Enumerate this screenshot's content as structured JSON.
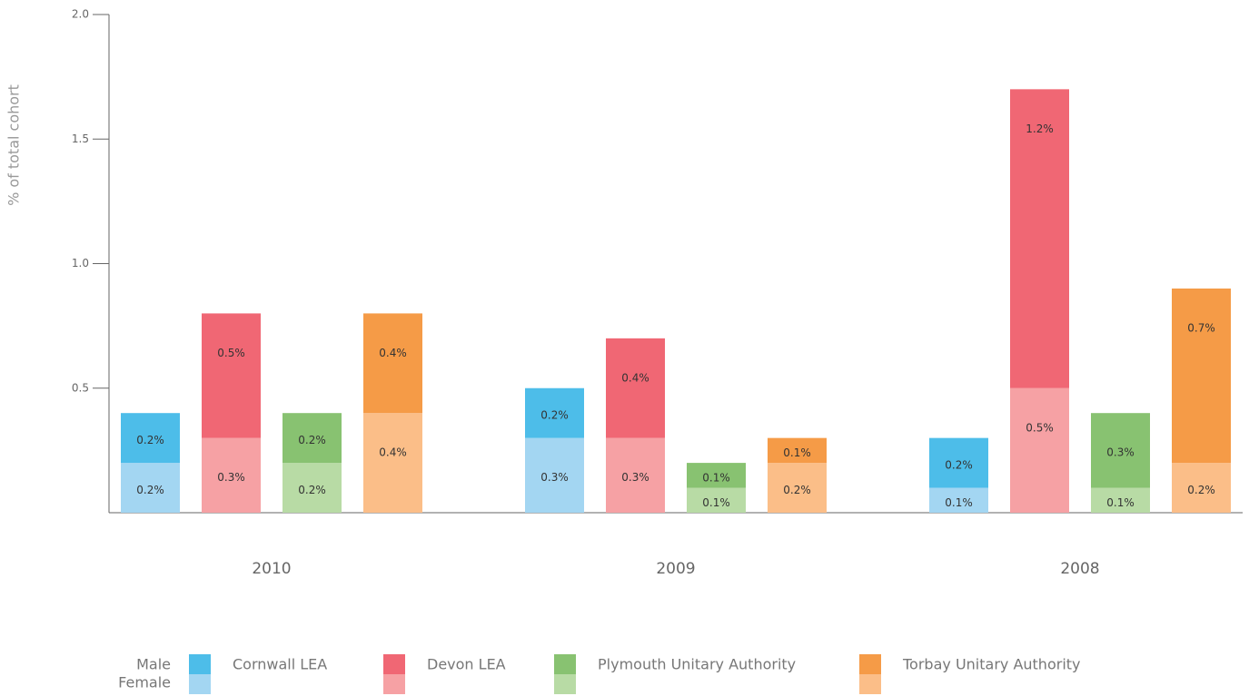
{
  "chart_data": {
    "type": "bar",
    "y_label": "% of total cohort",
    "categories": [
      "2010",
      "2009",
      "2008"
    ],
    "stack_names": [
      "Male",
      "Female"
    ],
    "ylim": [
      0,
      2.0
    ],
    "yticks": [
      0.5,
      {
        "value": 1,
        "label": "1.0"
      },
      1.5,
      {
        "value": 2,
        "label": "2.0"
      }
    ],
    "series": [
      {
        "name": "Cornwall LEA",
        "female": {
          "color": "#a3d6f2",
          "values": [
            0.2,
            0.3,
            0.1
          ],
          "value_labels": [
            "0.2%",
            "0.3%",
            "0.1%"
          ]
        },
        "male": {
          "color": "#4dbde9",
          "values": [
            0.2,
            0.2,
            0.2
          ],
          "value_labels": [
            "0.2%",
            "0.2%",
            "0.2%"
          ]
        }
      },
      {
        "name": "Devon LEA",
        "female": {
          "color": "#f6a1a4",
          "values": [
            0.3,
            0.3,
            0.5
          ],
          "value_labels": [
            "0.3%",
            "0.3%",
            "0.5%"
          ]
        },
        "male": {
          "color": "#f06774",
          "values": [
            0.5,
            0.4,
            1.2
          ],
          "value_labels": [
            "0.5%",
            "0.4%",
            "1.2%"
          ]
        }
      },
      {
        "name": "Plymouth Unitary Authority",
        "female": {
          "color": "#b8dba5",
          "values": [
            0.2,
            0.1,
            0.1
          ],
          "value_labels": [
            "0.2%",
            "0.1%",
            "0.1%"
          ]
        },
        "male": {
          "color": "#88c271",
          "values": [
            0.2,
            0.1,
            0.3
          ],
          "value_labels": [
            "0.2%",
            "0.1%",
            "0.3%"
          ]
        }
      },
      {
        "name": "Torbay Unitary Authority",
        "female": {
          "color": "#fbbe88",
          "values": [
            0.4,
            0.2,
            0.2
          ],
          "value_labels": [
            "0.4%",
            "0.2%",
            "0.2%"
          ]
        },
        "male": {
          "color": "#f59b47",
          "values": [
            0.4,
            0.1,
            0.7
          ],
          "value_labels": [
            "0.4%",
            "0.1%",
            "0.7%"
          ]
        }
      }
    ]
  }
}
